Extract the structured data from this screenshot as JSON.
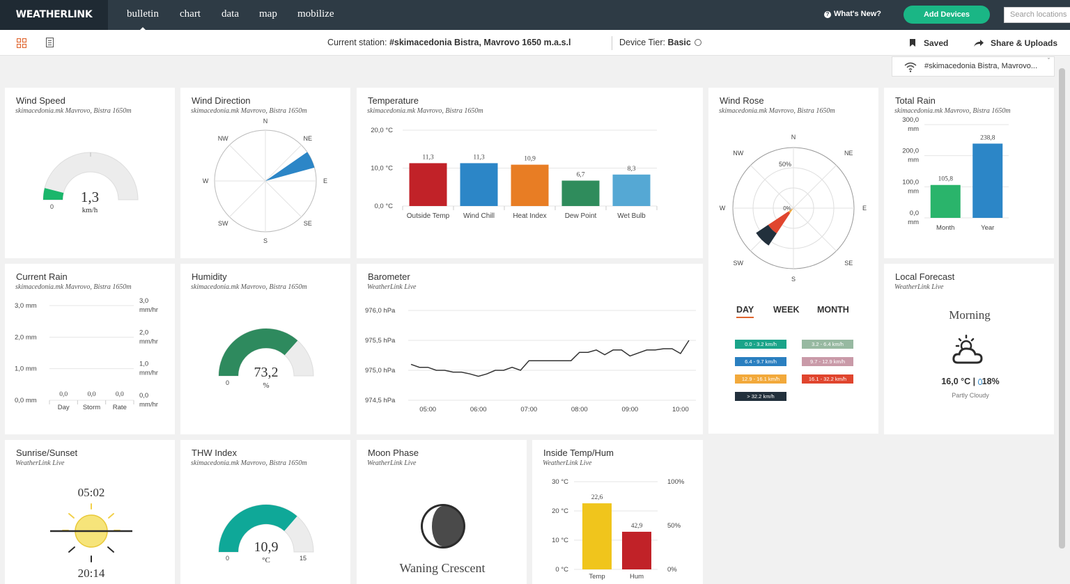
{
  "app": {
    "logo": "WEATHERLINK"
  },
  "nav": {
    "items": [
      {
        "label": "bulletin",
        "active": true
      },
      {
        "label": "chart"
      },
      {
        "label": "data"
      },
      {
        "label": "map"
      },
      {
        "label": "mobilize"
      }
    ]
  },
  "header_right": {
    "whats_new": "What's New?",
    "add_devices": "Add Devices",
    "search_placeholder": "Search locations"
  },
  "subheader": {
    "station_label": "Current station:",
    "station_name": "#skimacedonia Bistra, Mavrovo 1650 m.a.s.l",
    "tier_label": "Device Tier:",
    "tier_value": "Basic",
    "saved": "Saved",
    "share": "Share & Uploads",
    "station_select": "#skimacedonia Bistra, Mavrovo..."
  },
  "colors": {
    "accent_orange": "#e0652e",
    "green": "#1ab685",
    "nav_bg": "#2e3b45"
  },
  "cards": {
    "wind_speed": {
      "title": "Wind Speed",
      "sub": "skimacedonia.mk Mavrovo, Bistra 1650m",
      "value": "1,3",
      "unit": "km/h",
      "min": "0",
      "fraction": 0.08
    },
    "wind_direction": {
      "title": "Wind Direction",
      "sub": "skimacedonia.mk Mavrovo, Bistra 1650m",
      "dirs": [
        "N",
        "NE",
        "E",
        "SE",
        "S",
        "SW",
        "W",
        "NW"
      ],
      "heading_deg": 65
    },
    "temperature": {
      "title": "Temperature",
      "sub": "skimacedonia.mk Mavrovo, Bistra 1650m"
    },
    "wind_rose": {
      "title": "Wind Rose",
      "sub": "skimacedonia.mk Mavrovo, Bistra 1650m",
      "dirs": [
        "N",
        "NE",
        "E",
        "SE",
        "S",
        "SW",
        "W",
        "NW"
      ],
      "ring_labels": [
        "50%",
        "0%"
      ],
      "tabs": [
        "DAY",
        "WEEK",
        "MONTH"
      ],
      "legend": [
        {
          "label": "0.0 - 3.2 km/h",
          "color": "#1aa489"
        },
        {
          "label": "3.2 - 6.4 km/h",
          "color": "#97b9a1"
        },
        {
          "label": "6.4 - 9.7 km/h",
          "color": "#2a7fc0"
        },
        {
          "label": "9.7 - 12.9 km/h",
          "color": "#c99aa8"
        },
        {
          "label": "12.9 - 16.1 km/h",
          "color": "#f2a93b"
        },
        {
          "label": "16.1 - 32.2 km/h",
          "color": "#e0452e"
        },
        {
          "label": "> 32.2 km/h",
          "color": "#22303c"
        }
      ]
    },
    "total_rain": {
      "title": "Total Rain",
      "sub": "skimacedonia.mk Mavrovo, Bistra 1650m"
    },
    "current_rain": {
      "title": "Current Rain",
      "sub": "skimacedonia.mk Mavrovo, Bistra 1650m"
    },
    "humidity": {
      "title": "Humidity",
      "sub": "skimacedonia.mk Mavrovo, Bistra 1650m",
      "value": "73,2",
      "unit": "%",
      "min": "0",
      "fraction": 0.732
    },
    "barometer": {
      "title": "Barometer",
      "sub": "WeatherLink Live"
    },
    "local_forecast": {
      "title": "Local Forecast",
      "sub": "WeatherLink Live",
      "period": "Morning",
      "temp": "16,0 °C",
      "sep": "|",
      "humidity": "18%",
      "condition": "Partly Cloudy"
    },
    "sunrise": {
      "title": "Sunrise/Sunset",
      "sub": "WeatherLink Live",
      "sunrise": "05:02",
      "sunset": "20:14"
    },
    "thw": {
      "title": "THW Index",
      "sub": "skimacedonia.mk Mavrovo, Bistra 1650m",
      "value": "10,9",
      "unit": "°C",
      "min": "0",
      "max": "15",
      "fraction": 0.727
    },
    "moon": {
      "title": "Moon Phase",
      "sub": "WeatherLink Live",
      "phase": "Waning Crescent"
    },
    "inside": {
      "title": "Inside Temp/Hum",
      "sub": "WeatherLink Live"
    }
  },
  "chart_data": [
    {
      "id": "temperature",
      "type": "bar",
      "categories": [
        "Outside Temp",
        "Wind Chill",
        "Heat Index",
        "Dew Point",
        "Wet Bulb"
      ],
      "values": [
        11.3,
        11.3,
        10.9,
        6.7,
        8.3
      ],
      "value_labels": [
        "11,3",
        "11,3",
        "10,9",
        "6,7",
        "8,3"
      ],
      "colors": [
        "#c12228",
        "#2c86c7",
        "#e87d24",
        "#2f8c5c",
        "#55a8d4"
      ],
      "yticks": [
        "0,0 °C",
        "10,0 °C",
        "20,0 °C"
      ],
      "ylim": [
        0,
        20
      ]
    },
    {
      "id": "total_rain",
      "type": "bar",
      "categories": [
        "Month",
        "Year"
      ],
      "values": [
        105.8,
        238.8
      ],
      "value_labels": [
        "105,8",
        "238,8"
      ],
      "colors": [
        "#2ab46b",
        "#2c86c7"
      ],
      "yticks": [
        "0,0",
        "100,0",
        "200,0",
        "300,0"
      ],
      "yunit": "mm",
      "ylim": [
        0,
        300
      ]
    },
    {
      "id": "current_rain",
      "type": "bar",
      "categories": [
        "Day",
        "Storm",
        "Rate"
      ],
      "values": [
        0,
        0,
        0
      ],
      "value_labels": [
        "0,0",
        "0,0",
        "0,0"
      ],
      "yticks_left": [
        "0,0 mm",
        "1,0 mm",
        "2,0 mm",
        "3,0 mm"
      ],
      "yticks_right": [
        "0,0",
        "1,0",
        "2,0",
        "3,0"
      ],
      "yunit_right": "mm/hr",
      "ylim": [
        0,
        3
      ]
    },
    {
      "id": "barometer",
      "type": "line",
      "x": [
        "04:40",
        "04:50",
        "05:00",
        "05:10",
        "05:20",
        "05:30",
        "05:40",
        "05:50",
        "06:00",
        "06:10",
        "06:20",
        "06:30",
        "06:40",
        "06:50",
        "07:00",
        "07:10",
        "07:20",
        "07:30",
        "07:40",
        "07:50",
        "08:00",
        "08:10",
        "08:20",
        "08:30",
        "08:40",
        "08:50",
        "09:00",
        "09:10",
        "09:20",
        "09:30",
        "09:40",
        "09:50",
        "10:00",
        "10:10"
      ],
      "values": [
        975.1,
        975.05,
        975.05,
        975.0,
        975.0,
        974.97,
        974.97,
        974.94,
        974.9,
        974.94,
        975.0,
        975.0,
        975.05,
        975.0,
        975.16,
        975.16,
        975.16,
        975.16,
        975.16,
        975.16,
        975.3,
        975.3,
        975.34,
        975.26,
        975.34,
        975.34,
        975.24,
        975.29,
        975.34,
        975.34,
        975.36,
        975.36,
        975.28,
        975.5
      ],
      "xticks": [
        "05:00",
        "06:00",
        "07:00",
        "08:00",
        "09:00",
        "10:00"
      ],
      "yticks": [
        "974,5 hPa",
        "975,0 hPa",
        "975,5 hPa",
        "976,0 hPa"
      ],
      "ylim": [
        974.5,
        976.0
      ]
    },
    {
      "id": "inside",
      "type": "bar",
      "categories": [
        "Temp",
        "Hum"
      ],
      "values": [
        22.6,
        42.9
      ],
      "value_labels": [
        "22,6",
        "42,9"
      ],
      "colors": [
        "#f0c51c",
        "#c12228"
      ],
      "yticks_left": [
        "0 °C",
        "10 °C",
        "20 °C",
        "30 °C"
      ],
      "yticks_right": [
        "0%",
        "50%",
        "100%"
      ]
    },
    {
      "id": "wind_rose",
      "type": "pie",
      "direction": "SW",
      "segments": [
        {
          "range": "12.9 - 16.1 km/h",
          "percent": 5,
          "color": "#f2a93b"
        },
        {
          "range": "16.1 - 32.2 km/h",
          "percent": 20,
          "color": "#e0452e"
        },
        {
          "range": "> 32.2 km/h",
          "percent": 12,
          "color": "#22303c"
        }
      ]
    }
  ]
}
